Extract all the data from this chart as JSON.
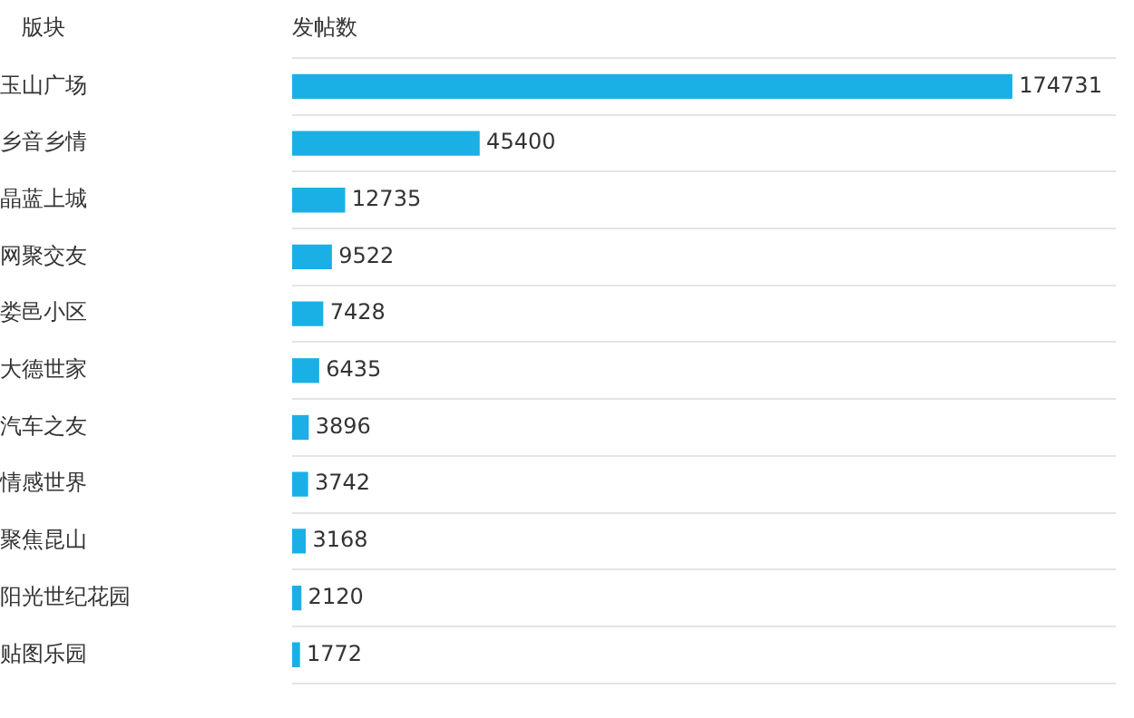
{
  "chart_data": {
    "type": "bar",
    "orientation": "horizontal",
    "ylabel": "版块",
    "xlabel": "发帖数",
    "categories": [
      "玉山广场",
      "乡音乡情",
      "晶蓝上城",
      "网聚交友",
      "娄邑小区",
      "大德世家",
      "汽车之友",
      "情感世界",
      "聚焦昆山",
      "阳光世纪花园",
      "贴图乐园"
    ],
    "values": [
      174731,
      45400,
      12735,
      9522,
      7428,
      6435,
      3896,
      3742,
      3168,
      2120,
      1772
    ],
    "color": "#1ab0e6",
    "xlim": [
      0,
      200000
    ],
    "data_labels": true,
    "grid": "y",
    "legend": false,
    "tick_labels": "y"
  }
}
